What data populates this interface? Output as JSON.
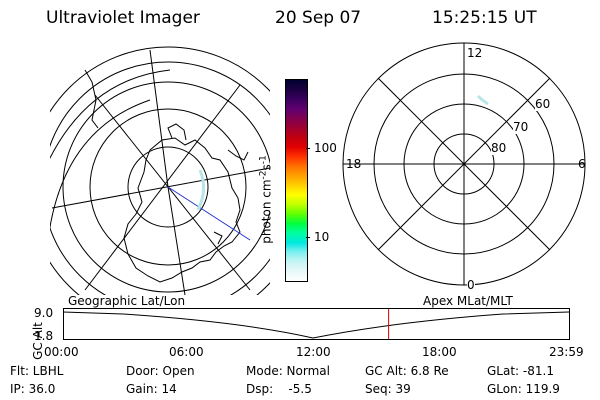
{
  "header": {
    "instrument": "Ultraviolet Imager",
    "date": "20 Sep 07",
    "time": "15:25:15 UT"
  },
  "colorbar": {
    "unit_label": "photon cm",
    "unit_exp1": "-2",
    "unit_s": "s",
    "unit_exp2": "-1",
    "ticks": [
      "100",
      "10"
    ],
    "colors": [
      "#000030",
      "#1a0040",
      "#3a0060",
      "#600070",
      "#800050",
      "#a00030",
      "#c00010",
      "#e00000",
      "#ff3000",
      "#ff7000",
      "#ffa000",
      "#ffd000",
      "#ffff00",
      "#c0ff00",
      "#60ff00",
      "#00ff40",
      "#00ffa0",
      "#00e8e0",
      "#80f0f0",
      "#c8f4f4",
      "#e8f8f8",
      "#ffffff"
    ]
  },
  "polar": {
    "mlt_labels": {
      "top": "12",
      "left": "18",
      "right": "6",
      "bottom": "0"
    },
    "lat_labels": [
      "60",
      "70",
      "80"
    ]
  },
  "timeline": {
    "left_title": "Geographic Lat/Lon",
    "right_title": "Apex MLat/MLT",
    "yaxis_label": "GC Alt",
    "y_top": "9.0",
    "y_bottom": "1.8",
    "ticks": [
      "00:00",
      "06:00",
      "12:00",
      "18:00",
      "23:59"
    ],
    "marker_time": "15:25",
    "marker_color": "#dd0000"
  },
  "info": {
    "filter": "Flt: LBHL",
    "door": "Door: Open",
    "mode": "Mode: Normal",
    "gc_alt": "GC Alt: 6.8 Re",
    "glat": "GLat: -81.1",
    "ip": "IP: 36.0",
    "gain": "Gain: 14",
    "dsp": "Dsp:    -5.5",
    "seq": "Seq: 39",
    "glon": "GLon: 119.9"
  }
}
